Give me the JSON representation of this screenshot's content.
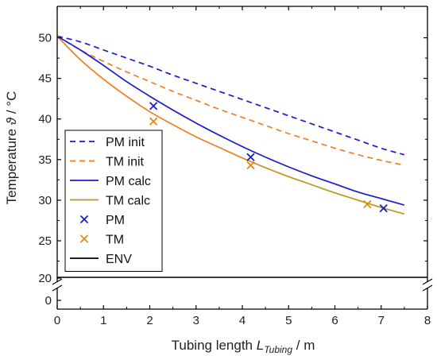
{
  "chart_data": {
    "type": "line",
    "xlabel_main": "Tubing length ",
    "xlabel_var": "L",
    "xlabel_sub": "Tubing",
    "xlabel_unit": " / m",
    "ylabel_main": "Temperature ",
    "ylabel_var": "ϑ",
    "ylabel_unit": " / °C",
    "xlim": [
      0,
      8
    ],
    "x_ticks": [
      0,
      1,
      2,
      3,
      4,
      5,
      6,
      7,
      8
    ],
    "y_ticks": [
      25,
      30,
      35,
      40,
      45,
      50
    ],
    "y_break_ticks": [
      20,
      0
    ],
    "ylim_upper": [
      20.5,
      52.5
    ],
    "legend_position": "bottom-left",
    "series": [
      {
        "name": "PM init",
        "kind": "line",
        "style": "dashed",
        "color": "#1a1ad0",
        "x": [
          0,
          0.5,
          1,
          1.5,
          2,
          2.5,
          3,
          3.5,
          4,
          4.5,
          5,
          5.5,
          6,
          6.5,
          7,
          7.5
        ],
        "y": [
          50.2,
          49.5,
          48.5,
          47.5,
          46.5,
          45.4,
          44.4,
          43.4,
          42.4,
          41.4,
          40.4,
          39.4,
          38.4,
          37.4,
          36.4,
          35.6
        ]
      },
      {
        "name": "TM init",
        "kind": "line",
        "style": "dashed",
        "color": "#f57c1f",
        "x": [
          0,
          0.5,
          1,
          1.5,
          2,
          2.5,
          3,
          3.5,
          4,
          4.5,
          5,
          5.5,
          6,
          6.5,
          7,
          7.5
        ],
        "y": [
          50.2,
          48.5,
          47.1,
          45.8,
          44.6,
          43.4,
          42.3,
          41.2,
          40.2,
          39.2,
          38.2,
          37.3,
          36.4,
          35.6,
          34.9,
          34.3
        ]
      },
      {
        "name": "PM calc",
        "kind": "line",
        "style": "solid",
        "color": "#1a1ad0",
        "x": [
          0,
          0.5,
          1,
          1.5,
          2,
          2.5,
          3,
          3.5,
          4,
          4.5,
          5,
          5.5,
          6,
          6.5,
          7,
          7.5
        ],
        "y": [
          50.2,
          48.5,
          46.6,
          44.6,
          42.8,
          41.1,
          39.5,
          38.0,
          36.6,
          35.3,
          34.1,
          33.0,
          32.0,
          31.0,
          30.2,
          29.4
        ]
      },
      {
        "name": "TM calc",
        "kind": "line",
        "style": "solid",
        "color": "#f57c1f",
        "color_tail": "#b89a1a",
        "x": [
          0,
          0.5,
          1,
          1.5,
          2,
          2.5,
          3,
          3.5,
          4,
          4.5,
          5,
          5.5,
          6,
          6.5,
          7,
          7.5
        ],
        "y": [
          50.2,
          47.3,
          44.9,
          42.8,
          40.9,
          39.3,
          37.8,
          36.5,
          35.2,
          34.0,
          32.9,
          31.9,
          30.9,
          30.0,
          29.1,
          28.3
        ]
      },
      {
        "name": "PM",
        "kind": "marker",
        "marker": "x",
        "color": "#1a1ad0",
        "x": [
          2.08,
          4.18,
          7.05
        ],
        "y": [
          41.6,
          35.3,
          29.0
        ]
      },
      {
        "name": "TM",
        "kind": "marker",
        "marker": "x",
        "color": "#e0861a",
        "x": [
          2.08,
          4.18,
          6.7
        ],
        "y": [
          39.7,
          34.3,
          29.5
        ]
      },
      {
        "name": "ENV",
        "kind": "line",
        "style": "solid",
        "color": "#000000",
        "x": [
          0,
          8
        ],
        "y": [
          20.5,
          20.5
        ]
      }
    ]
  }
}
